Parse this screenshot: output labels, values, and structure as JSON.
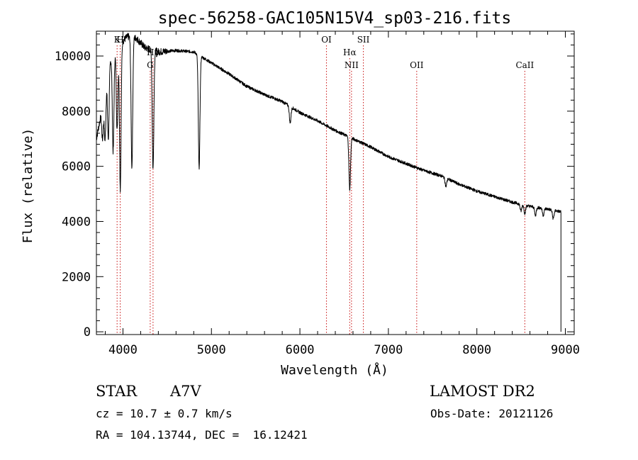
{
  "chart_data": {
    "type": "line",
    "title": "spec-56258-GAC105N15V4_sp03-216.fits",
    "xlabel": "Wavelength (Å)",
    "ylabel": "Flux (relative)",
    "xlim": [
      3700,
      9100
    ],
    "ylim": [
      -100,
      10900
    ],
    "xticks": [
      4000,
      5000,
      6000,
      7000,
      8000,
      9000
    ],
    "yticks": [
      0,
      2000,
      4000,
      6000,
      8000,
      10000
    ],
    "grid": false,
    "line_color": "#000000",
    "marker_color": "#cc2222",
    "continuum": {
      "x": [
        3700,
        3760,
        3850,
        3950,
        4050,
        4150,
        4250,
        4400,
        4600,
        4800,
        5000,
        5200,
        5400,
        5600,
        5800,
        6000,
        6200,
        6400,
        6600,
        6800,
        7000,
        7200,
        7400,
        7600,
        7800,
        8000,
        8200,
        8400,
        8600,
        8800,
        8950
      ],
      "y": [
        7000,
        8000,
        9800,
        10400,
        10700,
        10650,
        10300,
        10150,
        10200,
        10150,
        9750,
        9350,
        8900,
        8600,
        8350,
        7950,
        7650,
        7300,
        7000,
        6700,
        6350,
        6100,
        5850,
        5650,
        5350,
        5100,
        4900,
        4700,
        4550,
        4450,
        4350
      ]
    },
    "absorption_lines": [
      {
        "x": 3770,
        "depth": 1200
      },
      {
        "x": 3798,
        "depth": 1800
      },
      {
        "x": 3835,
        "depth": 2500
      },
      {
        "x": 3889,
        "depth": 3500
      },
      {
        "x": 3934,
        "depth": 3000
      },
      {
        "x": 3970,
        "depth": 5300
      },
      {
        "x": 4101,
        "depth": 4700
      },
      {
        "x": 4340,
        "depth": 4300
      },
      {
        "x": 4861,
        "depth": 4100
      },
      {
        "x": 5890,
        "depth": 600
      },
      {
        "x": 6563,
        "depth": 1900
      },
      {
        "x": 7650,
        "depth": 300
      },
      {
        "x": 8498,
        "depth": 250
      },
      {
        "x": 8542,
        "depth": 300
      },
      {
        "x": 8662,
        "depth": 300
      },
      {
        "x": 8750,
        "depth": 250
      },
      {
        "x": 8863,
        "depth": 300
      }
    ],
    "line_markers": [
      {
        "label": "K",
        "x": 3934,
        "row": 0
      },
      {
        "label": "H",
        "x": 3969,
        "row": 0
      },
      {
        "label": "G",
        "x": 4308,
        "row": 2
      },
      {
        "label": "Hγ",
        "x": 4340,
        "row": 1
      },
      {
        "label": "OI",
        "x": 6300,
        "row": 0
      },
      {
        "label": "Hα",
        "x": 6563,
        "row": 1
      },
      {
        "label": "NII",
        "x": 6583,
        "row": 2
      },
      {
        "label": "SII",
        "x": 6717,
        "row": 0
      },
      {
        "label": "OII",
        "x": 7320,
        "row": 2
      },
      {
        "label": "CaII",
        "x": 8542,
        "row": 2
      }
    ]
  },
  "info": {
    "object_type": "STAR",
    "spectral_class": "A7V",
    "survey": "LAMOST DR2",
    "redshift": "cz = 10.7 ± 0.7 km/s",
    "obs_date": "Obs-Date: 20121126",
    "coords": "RA = 104.13744, DEC =  16.12421"
  }
}
